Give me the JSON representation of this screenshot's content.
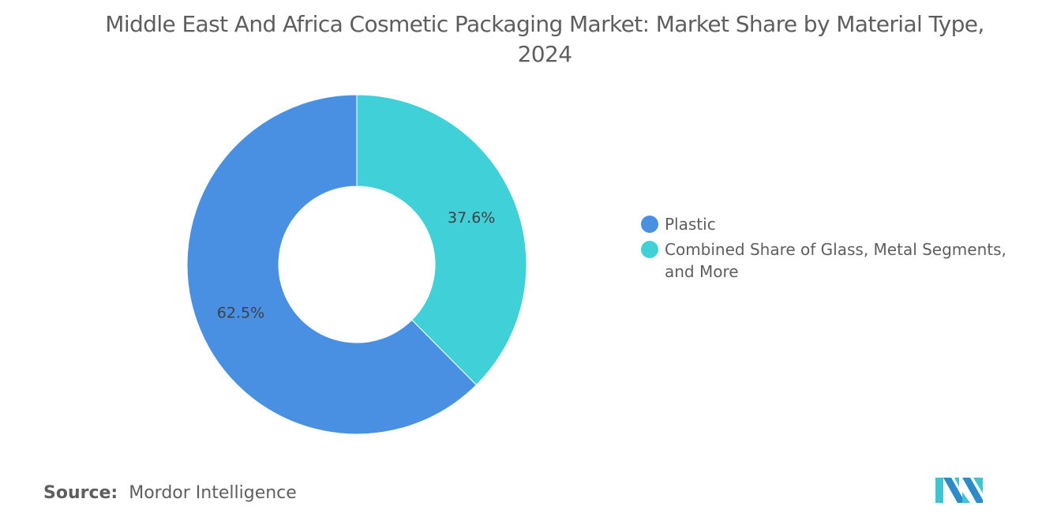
{
  "chart_data": {
    "type": "pie",
    "variant": "donut",
    "title": "Middle East And Africa Cosmetic Packaging Market: Market Share by Material Type, 2024",
    "slices": [
      {
        "name": "Combined Share of Glass, Metal Segments, and More",
        "value": 37.6,
        "label": "37.6%",
        "color": "#40d0d8"
      },
      {
        "name": "Plastic",
        "value": 62.5,
        "label": "62.5%",
        "color": "#4a90e2"
      }
    ],
    "legend": {
      "placement": "right",
      "items": [
        {
          "label": "Plastic",
          "color": "#4a90e2"
        },
        {
          "label": "Combined Share of Glass, Metal Segments, and More",
          "color": "#40d0d8"
        }
      ]
    }
  },
  "source": {
    "label": "Source:",
    "value": "Mordor Intelligence"
  },
  "logo": {
    "text": "Mordor Intelligence logo"
  }
}
